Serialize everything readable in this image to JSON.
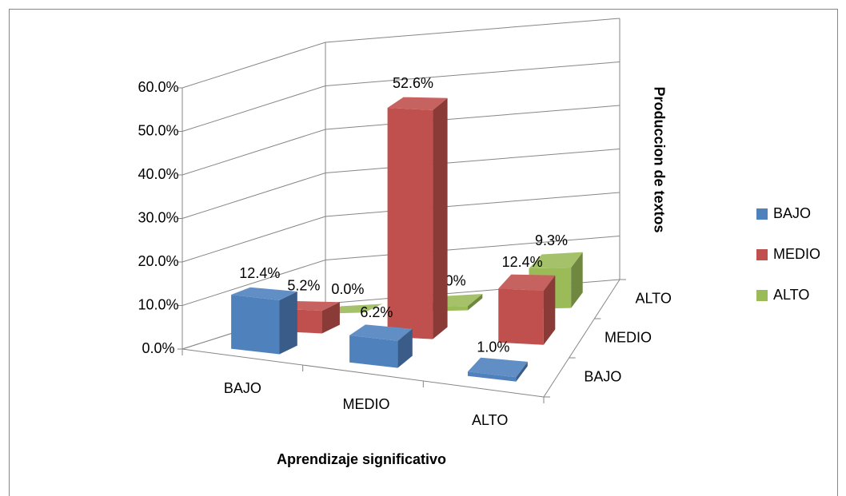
{
  "chart_data": {
    "type": "bar3d",
    "categories": [
      "BAJO",
      "MEDIO",
      "ALTO"
    ],
    "series": [
      {
        "name": "BAJO",
        "color": "#4f81bd",
        "values": [
          12.4,
          6.2,
          1.0
        ],
        "value_labels": [
          "12.4%",
          "6.2%",
          "1.0%"
        ]
      },
      {
        "name": "MEDIO",
        "color": "#c0504d",
        "values": [
          5.2,
          52.6,
          12.4
        ],
        "value_labels": [
          "5.2%",
          "52.6%",
          "12.4%"
        ]
      },
      {
        "name": "ALTO",
        "color": "#9bbb59",
        "values": [
          0.0,
          1.0,
          9.3
        ],
        "value_labels": [
          "0.0%",
          "1.0%",
          "9.3%"
        ]
      }
    ],
    "ylim": [
      0,
      60
    ],
    "yticks": [
      {
        "value": 0,
        "label": "0.0%"
      },
      {
        "value": 10,
        "label": "10.0%"
      },
      {
        "value": 20,
        "label": "20.0%"
      },
      {
        "value": 30,
        "label": "30.0%"
      },
      {
        "value": 40,
        "label": "40.0%"
      },
      {
        "value": 50,
        "label": "50.0%"
      },
      {
        "value": 60,
        "label": "60.0%"
      }
    ],
    "xlabel": "Aprendizaje significativo",
    "zlabel": "Produccion de textos",
    "grid": true,
    "legend": "right"
  }
}
